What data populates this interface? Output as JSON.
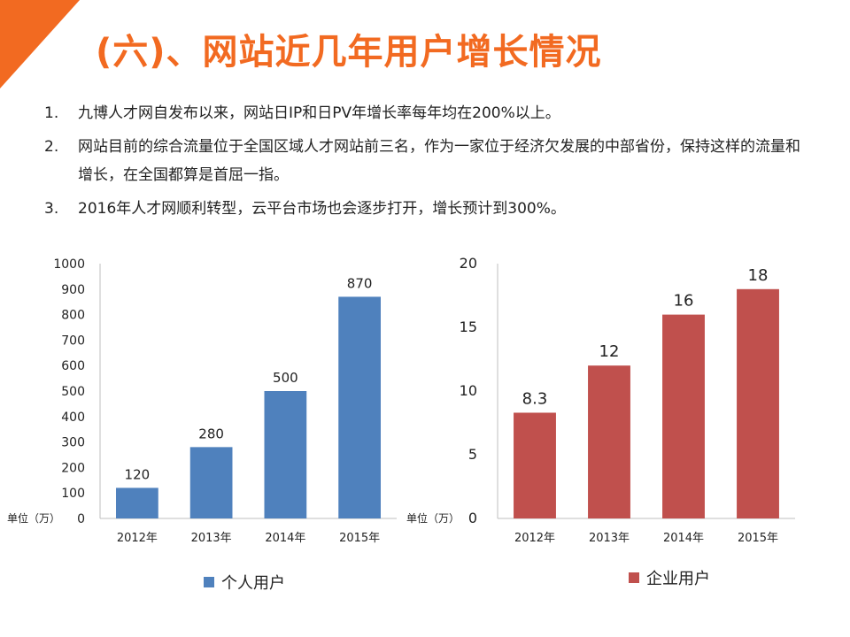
{
  "title": "(六)、网站近几年用户增长情况",
  "points": [
    {
      "num": "1.",
      "text": "九博人才网自发布以来，网站日IP和日PV年增长率每年均在200%以上。"
    },
    {
      "num": "2.",
      "text": "网站目前的综合流量位于全国区域人才网站前三名，作为一家位于经济欠发展的中部省份，保持这样的流量和增长，在全国都算是首屈一指。"
    },
    {
      "num": "3.",
      "text": "2016年人才网顺利转型，云平台市场也会逐步打开，增长预计到300%。"
    }
  ],
  "colors": {
    "accent": "#f26a21",
    "personal": "#4f81bd",
    "enterprise": "#c0504d"
  },
  "chart_data": [
    {
      "type": "bar",
      "categories": [
        "2012年",
        "2013年",
        "2014年",
        "2015年"
      ],
      "series": [
        {
          "name": "个人用户",
          "values": [
            120,
            280,
            500,
            870
          ]
        }
      ],
      "ylim": [
        0,
        1000
      ],
      "yticks": [
        0,
        100,
        200,
        300,
        400,
        500,
        600,
        700,
        800,
        900,
        1000
      ],
      "unit_label": "单位（万）",
      "legend": "bottom"
    },
    {
      "type": "bar",
      "categories": [
        "2012年",
        "2013年",
        "2014年",
        "2015年"
      ],
      "series": [
        {
          "name": "企业用户",
          "values": [
            8.3,
            12,
            16,
            18
          ]
        }
      ],
      "ylim": [
        0,
        20
      ],
      "yticks": [
        0,
        5,
        10,
        15,
        20
      ],
      "unit_label": "单位（万）",
      "legend": "bottom"
    }
  ]
}
